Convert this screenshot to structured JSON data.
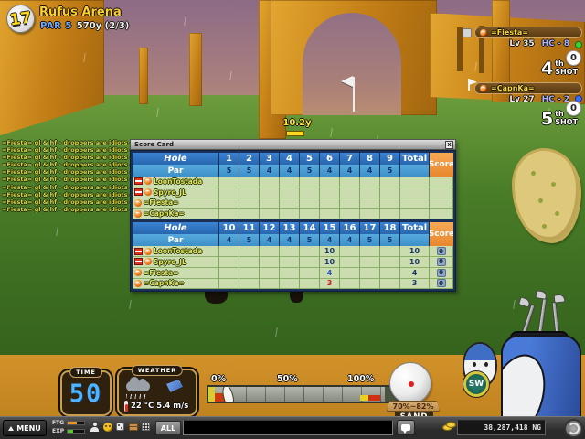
{
  "colors": {
    "accent_orange": "#e8872e",
    "header_blue": "#2f74c4",
    "par_blue": "#4aa2dc",
    "cell_green": "#cbdcae",
    "hud_gold": "#c8a050",
    "score_over": "#1d3a6e",
    "score_even": "#2a56c8",
    "score_under": "#c42222"
  },
  "hole_info": {
    "number": "17",
    "course": "Rufus Arena",
    "par_label": "PAR 5",
    "distance": "570y (2/3)"
  },
  "distance_marker": {
    "label": "10.2y"
  },
  "players": [
    {
      "name": "=Fiesta=",
      "level": "Lv 35",
      "handicap": "HC - 8",
      "score": "0",
      "shot_number": "4",
      "shot_suffix": "th SHOT",
      "status_color": "#35d435"
    },
    {
      "name": "=CapnKa=",
      "level": "Lv 27",
      "handicap": "HC - 2",
      "score": "0",
      "shot_number": "5",
      "shot_suffix": "th SHOT",
      "status_color": "#3a6cff"
    }
  ],
  "chat": {
    "lines": [
      "=Fiesta= gl & hf - droppers are idiots =+WiF+=",
      "=Fiesta= gl & hf - droppers are idiots =+WiF+=",
      "=Fiesta= gl & hf - droppers are idiots =+WiF+=",
      "=Fiesta= gl & hf - droppers are idiots =+WiF+=",
      "=Fiesta= gl & hf - droppers are idiots =+WiF+=",
      "=Fiesta= gl & hf - droppers are idiots =+WiF+=",
      "=Fiesta= gl & hf - droppers are idiots =+WiF+=",
      "=Fiesta= gl & hf - droppers are idiots =+WiF+=",
      "=Fiesta= gl & hf - droppers are idiots =+WiF+=",
      "=Fiesta= gl & hf - droppers are idiots =+WiF+="
    ]
  },
  "scorecard": {
    "title": "Score Card",
    "close_label": "x",
    "hole_label": "Hole",
    "par_label": "Par",
    "total_label": "Total",
    "score_label": "Score",
    "front": {
      "holes": [
        "1",
        "2",
        "3",
        "4",
        "5",
        "6",
        "7",
        "8",
        "9"
      ],
      "pars": [
        "5",
        "5",
        "4",
        "4",
        "5",
        "4",
        "4",
        "4",
        "5"
      ],
      "rows": [
        {
          "flag": true,
          "name": "LoonTostada",
          "scores": {},
          "total": "",
          "score": ""
        },
        {
          "flag": true,
          "name": "Spyro_JL",
          "scores": {},
          "total": "",
          "score": ""
        },
        {
          "flag": false,
          "name": "=Fiesta=",
          "scores": {},
          "total": "",
          "score": ""
        },
        {
          "flag": false,
          "name": "=CapnKa=",
          "scores": {},
          "total": "",
          "score": ""
        }
      ]
    },
    "back": {
      "holes": [
        "10",
        "11",
        "12",
        "13",
        "14",
        "15",
        "16",
        "17",
        "18"
      ],
      "pars": [
        "4",
        "5",
        "4",
        "4",
        "5",
        "4",
        "4",
        "5",
        "5"
      ],
      "rows": [
        {
          "flag": true,
          "name": "LoonTostada",
          "scores": {
            "15": {
              "v": "10",
              "tone": "over"
            }
          },
          "total": "10",
          "score": "0"
        },
        {
          "flag": true,
          "name": "Spyro_JL",
          "scores": {
            "15": {
              "v": "10",
              "tone": "over"
            }
          },
          "total": "10",
          "score": "0"
        },
        {
          "flag": false,
          "name": "=Fiesta=",
          "scores": {
            "15": {
              "v": "4",
              "tone": "even"
            }
          },
          "total": "4",
          "score": "0"
        },
        {
          "flag": false,
          "name": "=CapnKa=",
          "scores": {
            "15": {
              "v": "3",
              "tone": "under"
            }
          },
          "total": "3",
          "score": "0"
        }
      ]
    }
  },
  "time_panel": {
    "label": "TIME",
    "value": "50"
  },
  "weather_panel": {
    "label": "WEATHER",
    "temperature": "22 °C",
    "wind": "5.4 m/s",
    "wind_arrow": "↗"
  },
  "power_bar": {
    "labels": [
      "0%",
      "50%",
      "100%"
    ]
  },
  "ball_info": {
    "spin_range": "70%~82%",
    "lie": "SAND",
    "club": "SW"
  },
  "bottom_bar": {
    "menu_label": "MENU",
    "ftg_label": "FTG",
    "exp_label": "EXP",
    "channel_label": "ALL",
    "chat_placeholder": "",
    "money": "38,287,418 NG"
  }
}
